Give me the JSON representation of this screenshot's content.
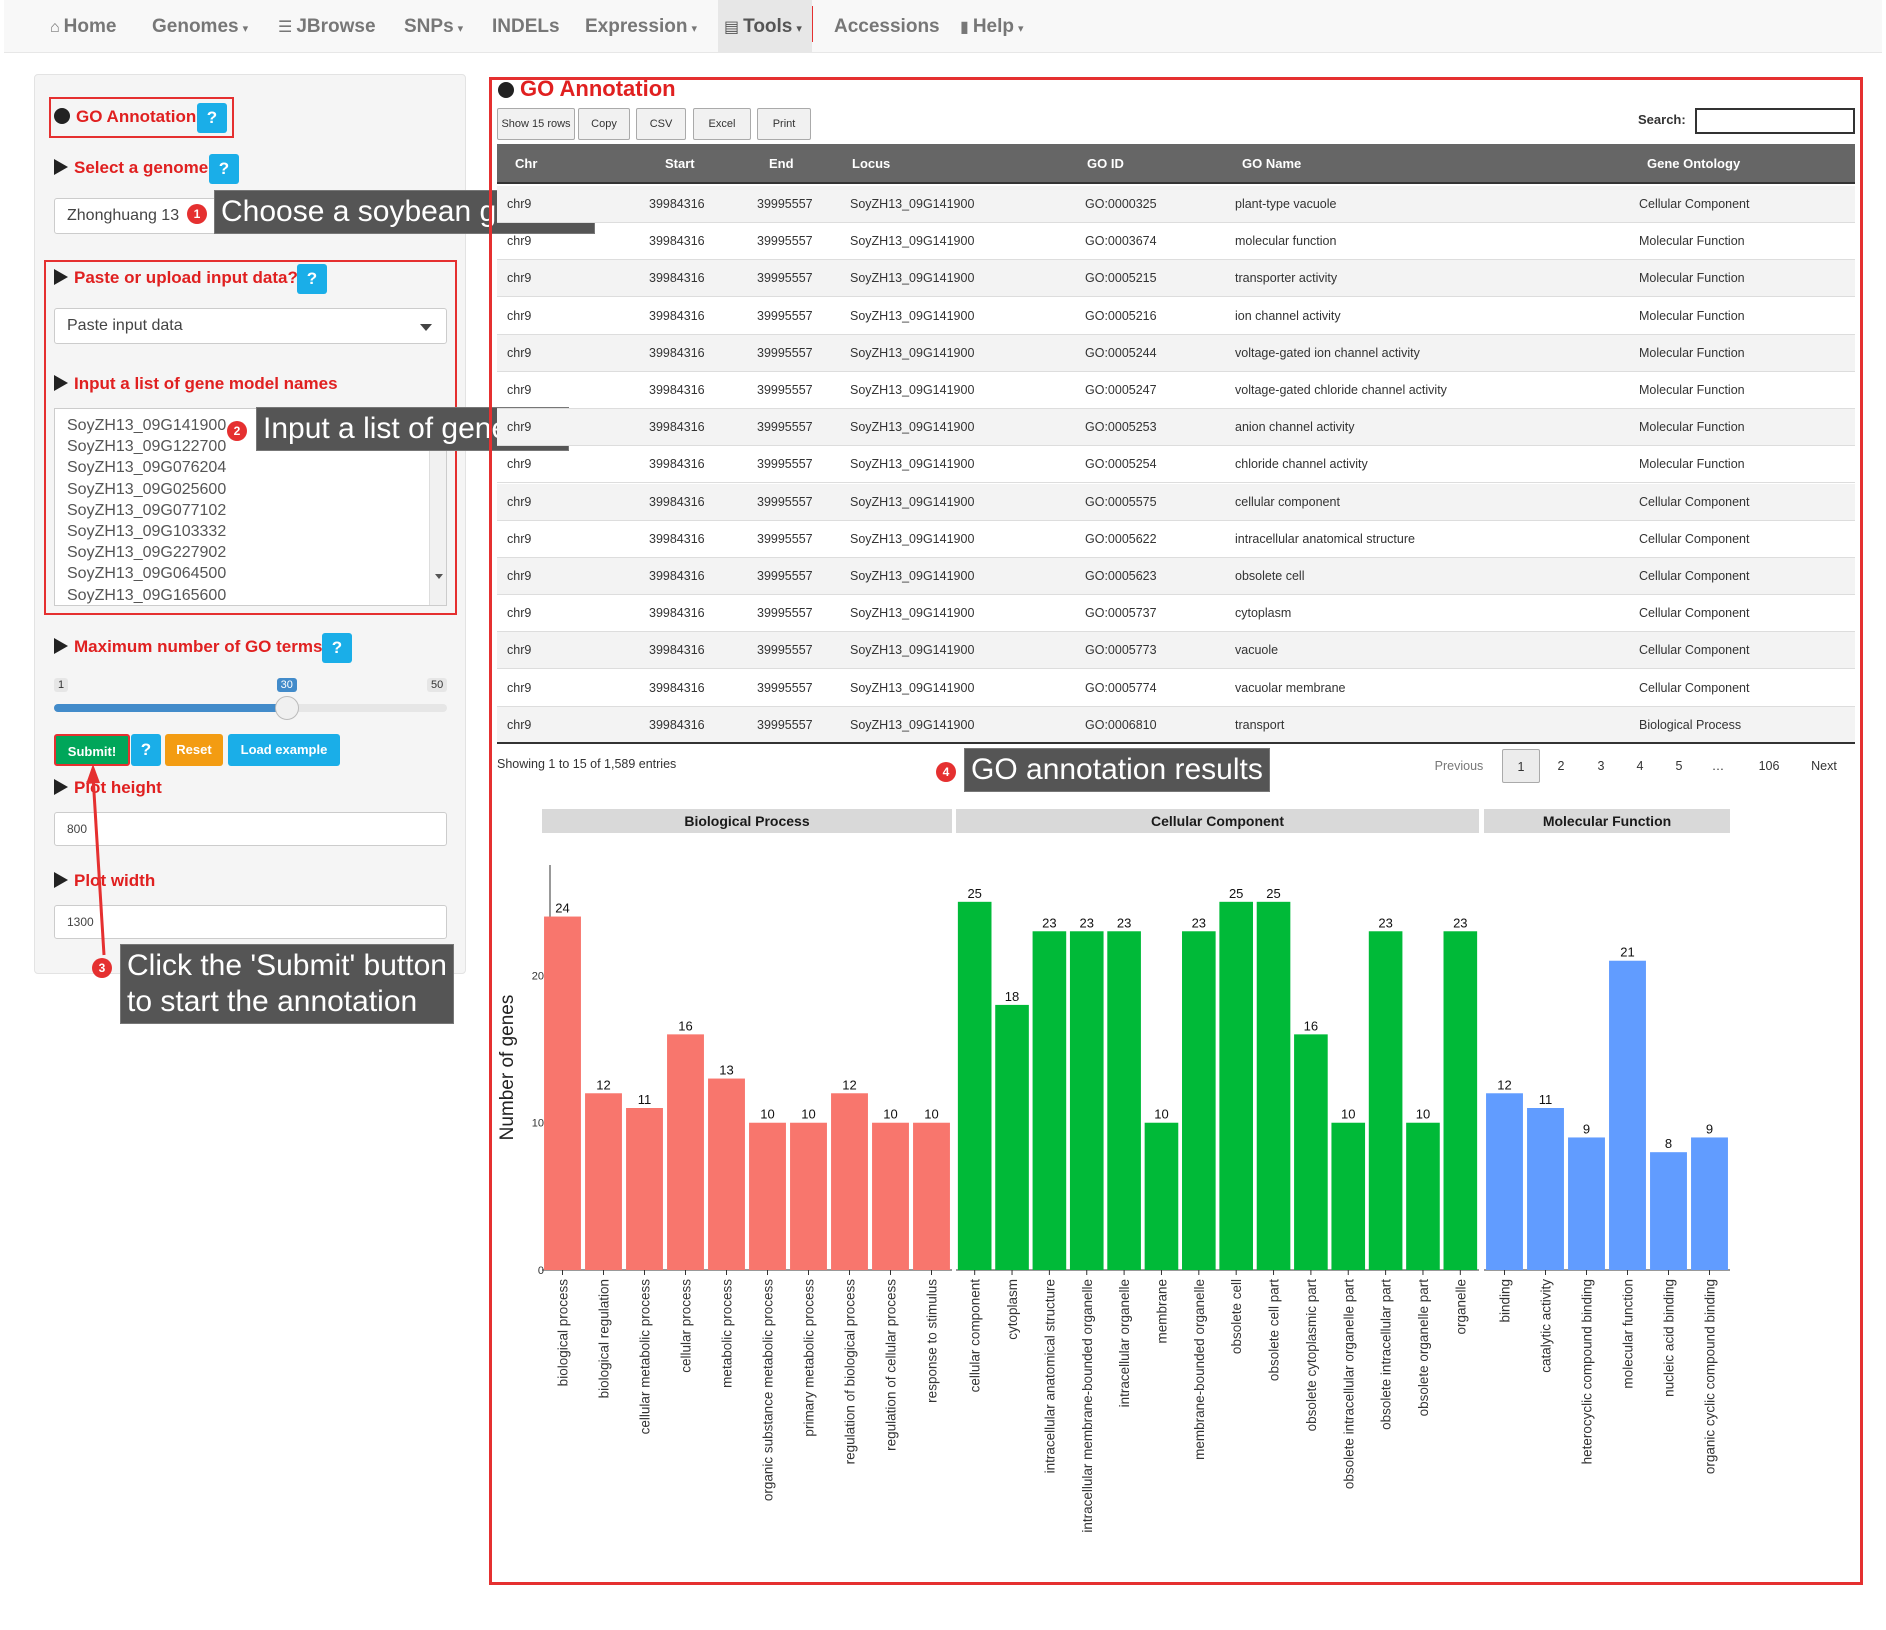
{
  "navbar": {
    "items": [
      {
        "label": "Home",
        "icon": "home-icon",
        "glyph": "⌂",
        "caret": false
      },
      {
        "label": "Genomes",
        "icon": "",
        "glyph": "",
        "caret": true
      },
      {
        "label": "JBrowse",
        "icon": "list-icon",
        "glyph": "☰",
        "caret": false
      },
      {
        "label": "SNPs",
        "icon": "",
        "glyph": "",
        "caret": true
      },
      {
        "label": "INDELs",
        "icon": "",
        "glyph": "",
        "caret": false
      },
      {
        "label": "Expression",
        "icon": "",
        "glyph": "",
        "caret": true
      },
      {
        "label": "Tools",
        "icon": "briefcase-icon",
        "glyph": "▤",
        "caret": true
      },
      {
        "label": "Accessions",
        "icon": "",
        "glyph": "",
        "caret": false
      },
      {
        "label": "Help",
        "icon": "book-icon",
        "glyph": "▮",
        "caret": true
      }
    ],
    "active": "Tools"
  },
  "sidebar": {
    "title": "GO Annotation",
    "help": "?",
    "genome_label": "Select a genome",
    "genome_value": "Zhonghuang 13",
    "input_label": "Paste or upload input data?",
    "input_mode": "Paste input data",
    "gene_list_label": "Input a list of gene model names",
    "gene_list": [
      "SoyZH13_09G141900",
      "SoyZH13_09G122700",
      "SoyZH13_09G076204",
      "SoyZH13_09G025600",
      "SoyZH13_09G077102",
      "SoyZH13_09G103332",
      "SoyZH13_09G227902",
      "SoyZH13_09G064500",
      "SoyZH13_09G165600"
    ],
    "max_go_label": "Maximum number of GO terms",
    "slider": {
      "min": "1",
      "max": "50",
      "value": "30",
      "min_num": 1,
      "max_num": 50,
      "value_num": 30
    },
    "submit_label": "Submit!",
    "reset_label": "Reset",
    "example_label": "Load example",
    "plot_height_label": "Plot height",
    "plot_height_value": "800",
    "plot_width_label": "Plot width",
    "plot_width_value": "1300"
  },
  "callouts": {
    "c1": {
      "num": "1",
      "text": "Choose a soybean genome"
    },
    "c2": {
      "num": "2",
      "text": "Input a list of gene IDs"
    },
    "c3": {
      "num": "3",
      "line1": "Click the 'Submit' button",
      "line2": "to start the annotation"
    },
    "c4": {
      "num": "4",
      "text": "GO annotation results"
    }
  },
  "main": {
    "title": "GO Annotation",
    "buttons": [
      "Show 15 rows",
      "Copy",
      "CSV",
      "Excel",
      "Print"
    ],
    "search_label": "Search:",
    "columns": [
      "Chr",
      "Start",
      "End",
      "Locus",
      "GO ID",
      "GO Name",
      "Gene Ontology"
    ],
    "rows": [
      [
        "chr9",
        "39984316",
        "39995557",
        "SoyZH13_09G141900",
        "GO:0000325",
        "plant-type vacuole",
        "Cellular Component"
      ],
      [
        "chr9",
        "39984316",
        "39995557",
        "SoyZH13_09G141900",
        "GO:0003674",
        "molecular function",
        "Molecular Function"
      ],
      [
        "chr9",
        "39984316",
        "39995557",
        "SoyZH13_09G141900",
        "GO:0005215",
        "transporter activity",
        "Molecular Function"
      ],
      [
        "chr9",
        "39984316",
        "39995557",
        "SoyZH13_09G141900",
        "GO:0005216",
        "ion channel activity",
        "Molecular Function"
      ],
      [
        "chr9",
        "39984316",
        "39995557",
        "SoyZH13_09G141900",
        "GO:0005244",
        "voltage-gated ion channel activity",
        "Molecular Function"
      ],
      [
        "chr9",
        "39984316",
        "39995557",
        "SoyZH13_09G141900",
        "GO:0005247",
        "voltage-gated chloride channel activity",
        "Molecular Function"
      ],
      [
        "chr9",
        "39984316",
        "39995557",
        "SoyZH13_09G141900",
        "GO:0005253",
        "anion channel activity",
        "Molecular Function"
      ],
      [
        "chr9",
        "39984316",
        "39995557",
        "SoyZH13_09G141900",
        "GO:0005254",
        "chloride channel activity",
        "Molecular Function"
      ],
      [
        "chr9",
        "39984316",
        "39995557",
        "SoyZH13_09G141900",
        "GO:0005575",
        "cellular component",
        "Cellular Component"
      ],
      [
        "chr9",
        "39984316",
        "39995557",
        "SoyZH13_09G141900",
        "GO:0005622",
        "intracellular anatomical structure",
        "Cellular Component"
      ],
      [
        "chr9",
        "39984316",
        "39995557",
        "SoyZH13_09G141900",
        "GO:0005623",
        "obsolete cell",
        "Cellular Component"
      ],
      [
        "chr9",
        "39984316",
        "39995557",
        "SoyZH13_09G141900",
        "GO:0005737",
        "cytoplasm",
        "Cellular Component"
      ],
      [
        "chr9",
        "39984316",
        "39995557",
        "SoyZH13_09G141900",
        "GO:0005773",
        "vacuole",
        "Cellular Component"
      ],
      [
        "chr9",
        "39984316",
        "39995557",
        "SoyZH13_09G141900",
        "GO:0005774",
        "vacuolar membrane",
        "Cellular Component"
      ],
      [
        "chr9",
        "39984316",
        "39995557",
        "SoyZH13_09G141900",
        "GO:0006810",
        "transport",
        "Biological Process"
      ]
    ],
    "info": "Showing 1 to 15 of 1,589 entries",
    "pagination": [
      "Previous",
      "1",
      "2",
      "3",
      "4",
      "5",
      "…",
      "106",
      "Next"
    ],
    "current_page": "1"
  },
  "chart_data": {
    "type": "bar",
    "ylabel": "Number of genes",
    "ylim": [
      0,
      27.5
    ],
    "yticks": [
      0,
      10,
      20
    ],
    "panels": [
      {
        "name": "Biological Process",
        "color": "#f8766d",
        "categories": [
          "biological process",
          "biological regulation",
          "cellular metabolic process",
          "cellular process",
          "metabolic process",
          "organic substance metabolic process",
          "primary metabolic process",
          "regulation of biological process",
          "regulation of cellular process",
          "response to stimulus"
        ],
        "values": [
          24,
          12,
          11,
          16,
          13,
          10,
          10,
          12,
          10,
          10
        ]
      },
      {
        "name": "Cellular Component",
        "color": "#00ba38",
        "categories": [
          "cellular component",
          "cytoplasm",
          "intracellular anatomical structure",
          "intracellular membrane-bounded organelle",
          "intracellular organelle",
          "membrane",
          "membrane-bounded organelle",
          "obsolete cell",
          "obsolete cell part",
          "obsolete cytoplasmic part",
          "obsolete intracellular organelle part",
          "obsolete intracellular part",
          "obsolete organelle part",
          "organelle"
        ],
        "values": [
          25,
          18,
          23,
          23,
          23,
          10,
          23,
          25,
          25,
          16,
          10,
          23,
          10,
          23
        ]
      },
      {
        "name": "Molecular Function",
        "color": "#619cff",
        "categories": [
          "binding",
          "catalytic activity",
          "heterocyclic compound binding",
          "molecular function",
          "nucleic acid binding",
          "organic cyclic compound binding"
        ],
        "values": [
          12,
          11,
          9,
          21,
          8,
          9
        ]
      }
    ]
  }
}
